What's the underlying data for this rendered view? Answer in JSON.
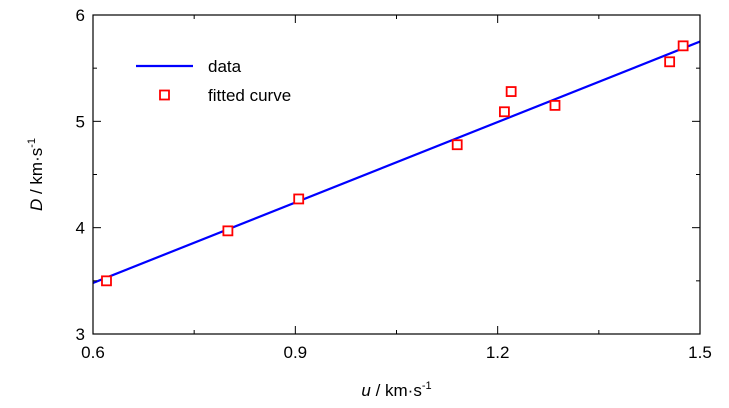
{
  "chart_data": {
    "type": "scatter",
    "xlabel": {
      "var": "u",
      "unit": "km·s",
      "exp": "-1"
    },
    "ylabel": {
      "var": "D",
      "unit": "km·s",
      "exp": "-1"
    },
    "xlim": [
      0.6,
      1.5
    ],
    "ylim": [
      3,
      6
    ],
    "xticks": [
      "0.6",
      "0.9",
      "1.2",
      "1.5"
    ],
    "yticks": [
      "3",
      "4",
      "5",
      "6"
    ],
    "grid": false,
    "legend_position": "top-left",
    "series": [
      {
        "name": "data",
        "kind": "line",
        "color": "#0000ff",
        "x": [
          0.6,
          1.5
        ],
        "y": [
          3.48,
          5.75
        ]
      },
      {
        "name": "fitted curve",
        "kind": "markers",
        "marker": "square",
        "color": "#ff0000",
        "x": [
          0.62,
          0.8,
          0.905,
          1.14,
          1.21,
          1.22,
          1.285,
          1.455,
          1.475
        ],
        "y": [
          3.5,
          3.97,
          4.27,
          4.78,
          5.09,
          5.28,
          5.15,
          5.56,
          5.71
        ]
      }
    ]
  }
}
